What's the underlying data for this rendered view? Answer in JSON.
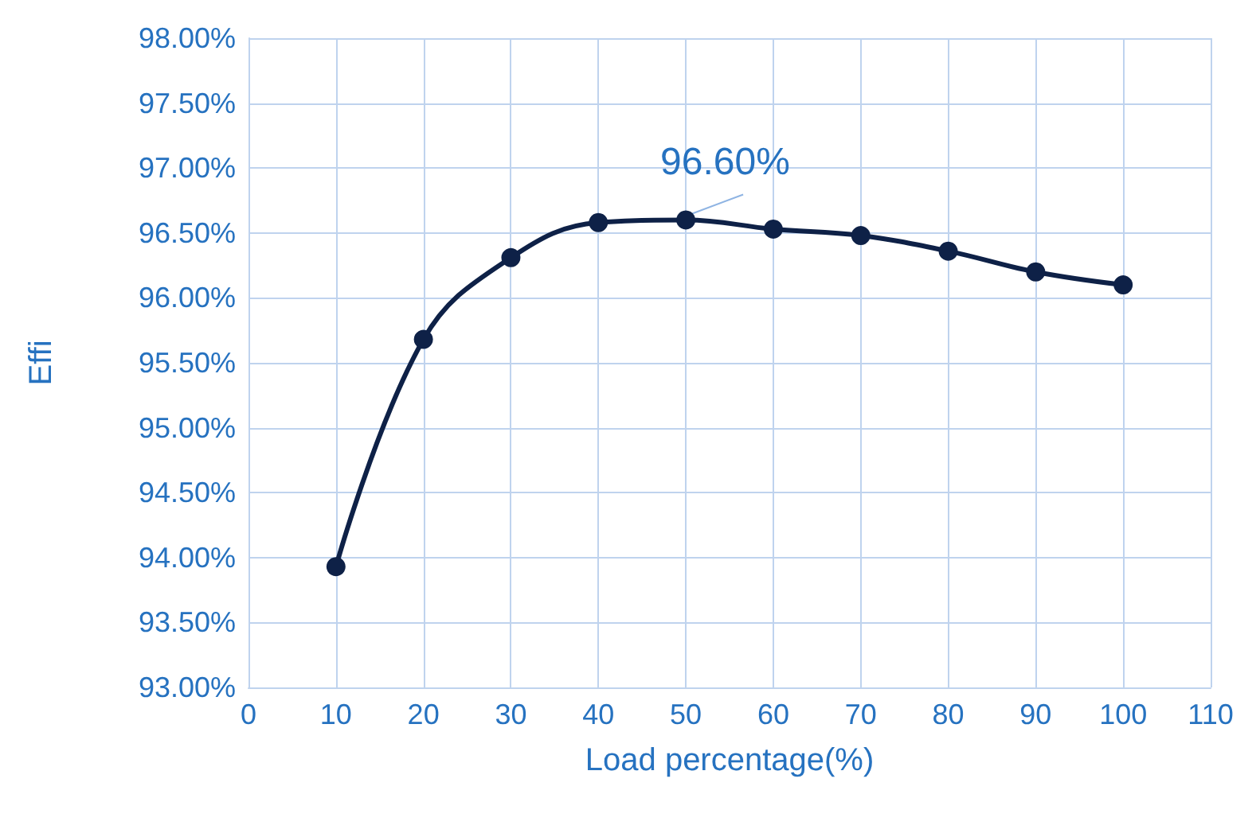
{
  "chart_data": {
    "type": "line",
    "xlabel": "Load percentage(%)",
    "ylabel": "Effi",
    "x": [
      10,
      20,
      30,
      40,
      50,
      60,
      70,
      80,
      90,
      100
    ],
    "series": [
      {
        "color": "#0e2147",
        "values": [
          93.93,
          95.68,
          96.31,
          96.58,
          96.6,
          96.53,
          96.48,
          96.36,
          96.2,
          96.1
        ]
      }
    ],
    "xlim": [
      0,
      110
    ],
    "xticks": [
      0,
      10,
      20,
      30,
      40,
      50,
      60,
      70,
      80,
      90,
      100,
      110
    ],
    "ylim": [
      93,
      98
    ],
    "yticks": [
      {
        "value": 93,
        "label": "93.00%"
      },
      {
        "value": 93.5,
        "label": "93.50%"
      },
      {
        "value": 94,
        "label": "94.00%"
      },
      {
        "value": 94.5,
        "label": "94.50%"
      },
      {
        "value": 95,
        "label": "95.00%"
      },
      {
        "value": 95.5,
        "label": "95.50%"
      },
      {
        "value": 96,
        "label": "96.00%"
      },
      {
        "value": 96.5,
        "label": "96.50%"
      },
      {
        "value": 97,
        "label": "97.00%"
      },
      {
        "value": 97.5,
        "label": "97.50%"
      },
      {
        "value": 98,
        "label": "98.00%"
      }
    ],
    "annotations": [
      {
        "text": "96.60%",
        "x": 50,
        "y": 96.6
      }
    ],
    "grid": true,
    "marker": "circle",
    "line_style": "solid"
  }
}
